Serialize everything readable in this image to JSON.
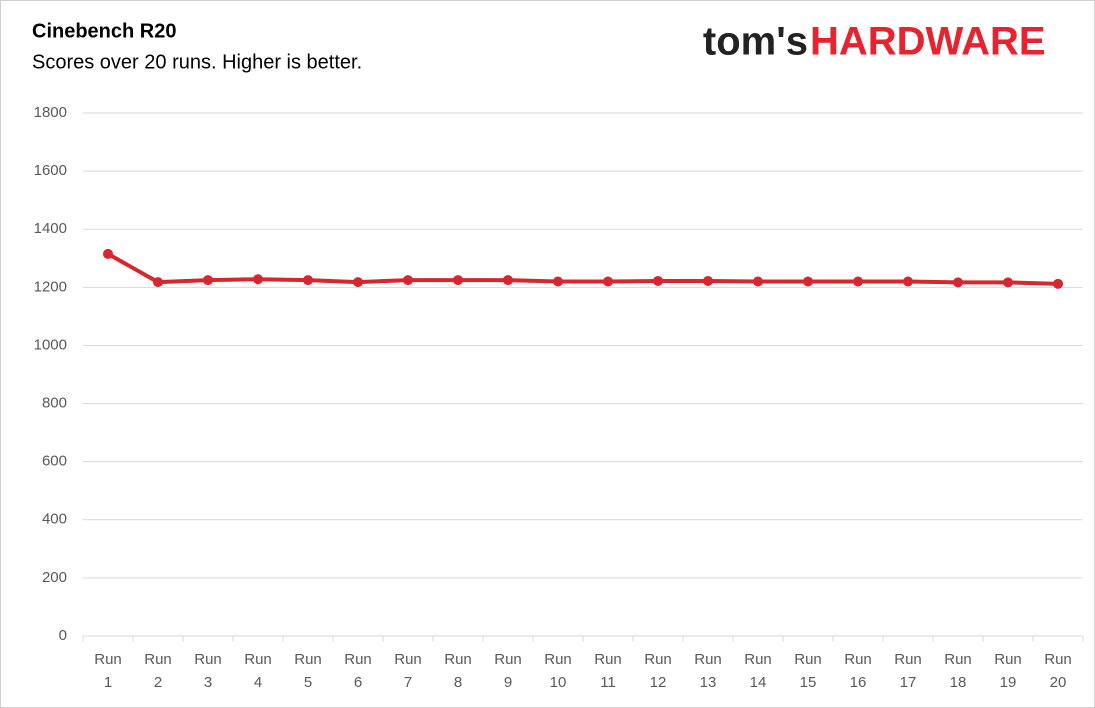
{
  "chart_data": {
    "type": "line",
    "title": "Cinebench R20",
    "subtitle": "Scores over 20 runs. Higher is better.",
    "brand": [
      "tom's",
      "HARDWARE"
    ],
    "categories": [
      "Run 1",
      "Run 2",
      "Run 3",
      "Run 4",
      "Run 5",
      "Run 6",
      "Run 7",
      "Run 8",
      "Run 9",
      "Run 10",
      "Run 11",
      "Run 12",
      "Run 13",
      "Run 14",
      "Run 15",
      "Run 16",
      "Run 17",
      "Run 18",
      "Run 19",
      "Run 20"
    ],
    "series": [
      {
        "name": "Cinebench R20",
        "color": "#d7262e",
        "values": [
          1315,
          1218,
          1225,
          1228,
          1225,
          1218,
          1225,
          1225,
          1225,
          1220,
          1220,
          1222,
          1222,
          1220,
          1220,
          1220,
          1220,
          1217,
          1217,
          1212
        ]
      }
    ],
    "ylim": [
      0,
      1800
    ],
    "yticks": [
      0,
      200,
      400,
      600,
      800,
      1000,
      1200,
      1400,
      1600,
      1800
    ],
    "grid": true
  }
}
